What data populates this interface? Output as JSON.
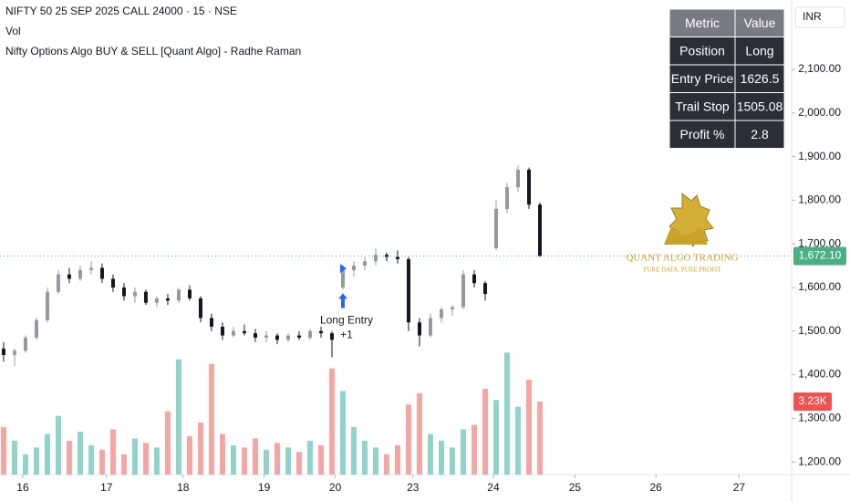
{
  "chart_data": {
    "type": "candlestick",
    "symbol_title": "NIFTY 50 25 SEP 2025 CALL 24000 · 15 · NSE",
    "volume_label": "Vol",
    "indicator_label": "Nifty Options Algo BUY & SELL [Quant Algo] - Radhe Raman",
    "currency": "INR",
    "open": [
      1460,
      1445,
      1455,
      1485,
      1525,
      1590,
      1630,
      1620,
      1640,
      1645,
      1620,
      1600,
      1580,
      1590,
      1565,
      1575,
      1570,
      1595,
      1575,
      1530,
      1510,
      1490,
      1500,
      1495,
      1485,
      1490,
      1480,
      1490,
      1485,
      1500,
      1495,
      1600,
      1640,
      1650,
      1660,
      1675,
      1670,
      1665,
      1520,
      1490,
      1530,
      1550,
      1555,
      1630,
      1610,
      1690,
      1780,
      1830,
      1870,
      1790
    ],
    "high": [
      1475,
      1460,
      1490,
      1530,
      1600,
      1640,
      1645,
      1650,
      1660,
      1655,
      1630,
      1610,
      1600,
      1595,
      1580,
      1585,
      1600,
      1605,
      1580,
      1540,
      1520,
      1510,
      1515,
      1505,
      1500,
      1495,
      1495,
      1500,
      1505,
      1510,
      1500,
      1650,
      1660,
      1670,
      1690,
      1680,
      1685,
      1670,
      1530,
      1540,
      1555,
      1560,
      1640,
      1640,
      1615,
      1800,
      1840,
      1880,
      1875,
      1795
    ],
    "low": [
      1430,
      1420,
      1450,
      1480,
      1520,
      1585,
      1610,
      1615,
      1630,
      1610,
      1590,
      1570,
      1565,
      1560,
      1555,
      1560,
      1565,
      1570,
      1520,
      1500,
      1480,
      1485,
      1490,
      1475,
      1475,
      1470,
      1475,
      1480,
      1480,
      1485,
      1440,
      1595,
      1625,
      1640,
      1650,
      1660,
      1655,
      1500,
      1465,
      1485,
      1520,
      1535,
      1550,
      1600,
      1570,
      1685,
      1770,
      1820,
      1780,
      1670
    ],
    "close": [
      1445,
      1455,
      1485,
      1525,
      1590,
      1630,
      1620,
      1640,
      1645,
      1620,
      1600,
      1580,
      1590,
      1565,
      1575,
      1570,
      1595,
      1575,
      1530,
      1510,
      1490,
      1500,
      1495,
      1485,
      1490,
      1480,
      1490,
      1485,
      1500,
      1495,
      1480,
      1640,
      1650,
      1660,
      1675,
      1670,
      1665,
      1520,
      1490,
      1530,
      1550,
      1555,
      1630,
      1610,
      1585,
      1780,
      1830,
      1870,
      1790,
      1672.1
    ],
    "volume": [
      2100,
      1500,
      900,
      1200,
      1800,
      2600,
      1500,
      1900,
      1300,
      1100,
      2000,
      900,
      1600,
      1400,
      1200,
      2800,
      5100,
      1700,
      2300,
      4900,
      1800,
      1300,
      1200,
      1600,
      1100,
      1400,
      1200,
      1000,
      1500,
      1300,
      4700,
      3700,
      2100,
      1500,
      1200,
      900,
      1300,
      3100,
      3600,
      1800,
      1500,
      1200,
      2000,
      2200,
      3800,
      3300,
      5400,
      3000,
      4200,
      3230
    ],
    "up_color": "#9598a1",
    "down_color": "#131722",
    "volume_up_color": "#8fd3c9",
    "volume_down_color": "#f5a6a3",
    "ylim": [
      1171,
      2259
    ],
    "yticks": [
      {
        "value": 1200,
        "label": "1,200.00"
      },
      {
        "value": 1300,
        "label": "1,300.00"
      },
      {
        "value": 1400,
        "label": "1,400.00"
      },
      {
        "value": 1500,
        "label": "1,500.00"
      },
      {
        "value": 1600,
        "label": "1,600.00"
      },
      {
        "value": 1700,
        "label": "1,700.00"
      },
      {
        "value": 1800,
        "label": "1,800.00"
      },
      {
        "value": 1900,
        "label": "1,900.00"
      },
      {
        "value": 2000,
        "label": "2,000.00"
      },
      {
        "value": 2100,
        "label": "2,100.00"
      }
    ],
    "volume_ylim": [
      0,
      21000
    ],
    "xlim": [
      -0.33,
      72
    ],
    "xticks": [
      {
        "value": 1.75,
        "label": "16"
      },
      {
        "value": 9.4,
        "label": "17"
      },
      {
        "value": 16.4,
        "label": "18"
      },
      {
        "value": 23.8,
        "label": "19"
      },
      {
        "value": 30.3,
        "label": "20"
      },
      {
        "value": 37.4,
        "label": "23"
      },
      {
        "value": 44.75,
        "label": "24"
      },
      {
        "value": 52.2,
        "label": "25"
      },
      {
        "value": 59.6,
        "label": "26"
      },
      {
        "value": 67.2,
        "label": "27"
      }
    ],
    "last_price": {
      "value": 1672.1,
      "label": "1,672.10"
    },
    "last_volume": {
      "value": 3230,
      "label": "3.23K"
    },
    "signal": {
      "candle": 31,
      "text": "Long Entry",
      "qty": "+1"
    }
  },
  "metrics_table": {
    "header": [
      "Metric",
      "Value"
    ],
    "rows": [
      [
        "Position",
        "Long"
      ],
      [
        "Entry Price",
        1626.5
      ],
      [
        "Trail Stop",
        1505.08
      ],
      [
        "Profit %",
        2.8
      ]
    ]
  },
  "logo": {
    "title": "QUANT ALGO TRADING",
    "tagline": "PURE DATA. PURE PROFIT"
  }
}
